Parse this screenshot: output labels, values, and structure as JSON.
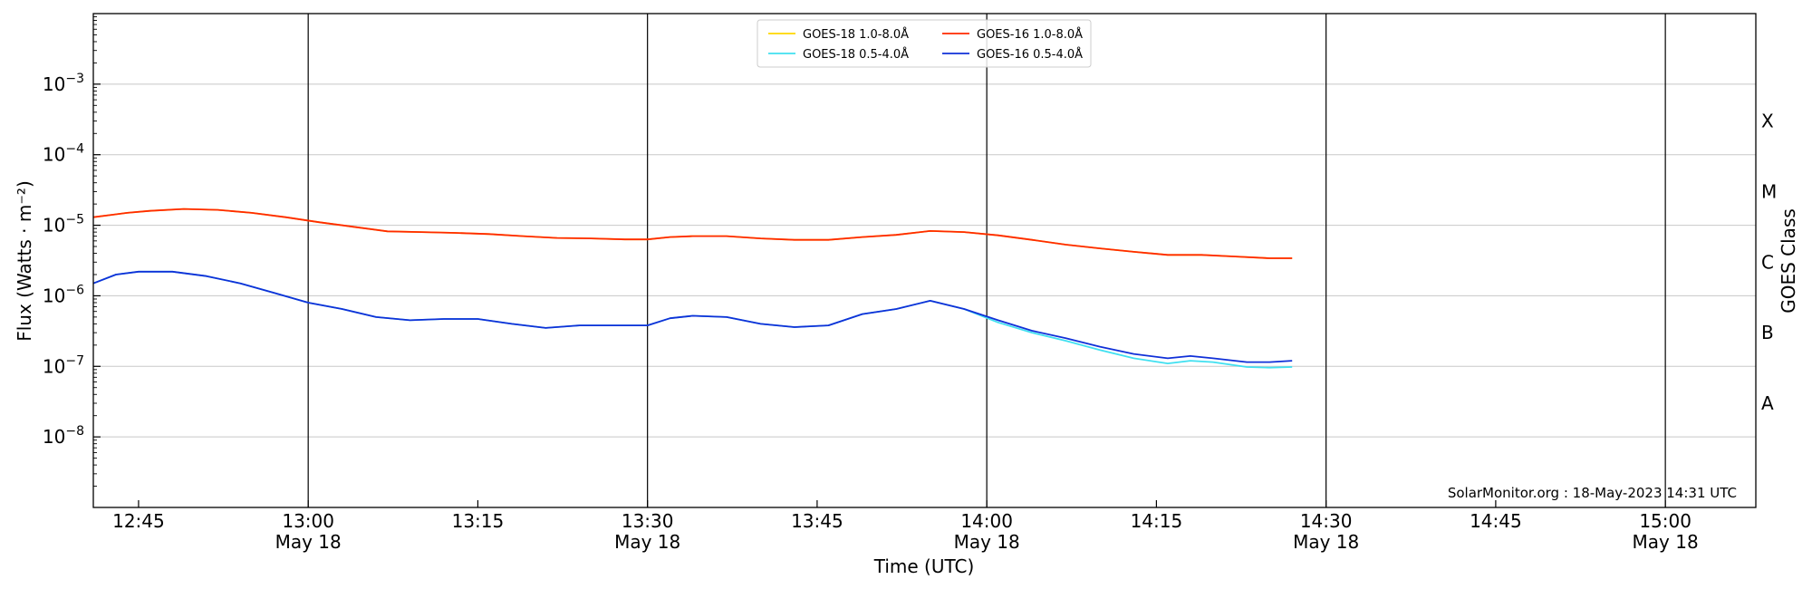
{
  "chart_data": {
    "type": "line",
    "xlabel": "Time (UTC)",
    "ylabel": "Flux (Watts · m⁻²)",
    "ylabel_right": "GOES Class",
    "credit": "SolarMonitor.org : 18-May-2023 14:31 UTC",
    "y_scale": "log",
    "ylim": [
      1e-09,
      0.01
    ],
    "xlim": [
      "2023-05-18 12:41",
      "2023-05-18 15:08"
    ],
    "grid": true,
    "legend_placement": "top-center",
    "x_ticks": [
      {
        "time": "12:45",
        "line1": "12:45",
        "line2": ""
      },
      {
        "time": "13:00",
        "line1": "13:00",
        "line2": "May 18"
      },
      {
        "time": "13:15",
        "line1": "13:15",
        "line2": ""
      },
      {
        "time": "13:30",
        "line1": "13:30",
        "line2": "May 18"
      },
      {
        "time": "13:45",
        "line1": "13:45",
        "line2": ""
      },
      {
        "time": "14:00",
        "line1": "14:00",
        "line2": "May 18"
      },
      {
        "time": "14:15",
        "line1": "14:15",
        "line2": ""
      },
      {
        "time": "14:30",
        "line1": "14:30",
        "line2": "May 18"
      },
      {
        "time": "14:45",
        "line1": "14:45",
        "line2": ""
      },
      {
        "time": "15:00",
        "line1": "15:00",
        "line2": "May 18"
      }
    ],
    "vertical_lines": [
      "13:00",
      "13:30",
      "14:00",
      "14:30",
      "15:00"
    ],
    "y_ticks": [
      {
        "value": 1e-08,
        "base": "10",
        "exp": "−8"
      },
      {
        "value": 1e-07,
        "base": "10",
        "exp": "−7"
      },
      {
        "value": 1e-06,
        "base": "10",
        "exp": "−6"
      },
      {
        "value": 1e-05,
        "base": "10",
        "exp": "−5"
      },
      {
        "value": 0.0001,
        "base": "10",
        "exp": "−4"
      },
      {
        "value": 0.001,
        "base": "10",
        "exp": "−3"
      }
    ],
    "goes_classes": [
      {
        "label": "A",
        "value": 3e-08
      },
      {
        "label": "B",
        "value": 3e-07
      },
      {
        "label": "C",
        "value": 3e-06
      },
      {
        "label": "M",
        "value": 3e-05
      },
      {
        "label": "X",
        "value": 0.0003
      }
    ],
    "series": [
      {
        "name": "GOES-18 1.0-8.0Å",
        "color": "#ffd700",
        "points": [
          [
            "12:41",
            1.3e-05
          ],
          [
            "12:44",
            1.5e-05
          ],
          [
            "12:46",
            1.6e-05
          ],
          [
            "12:49",
            1.7e-05
          ],
          [
            "12:52",
            1.65e-05
          ],
          [
            "12:55",
            1.5e-05
          ],
          [
            "12:58",
            1.3e-05
          ],
          [
            "13:01",
            1.1e-05
          ],
          [
            "13:04",
            9.5e-06
          ],
          [
            "13:07",
            8.2e-06
          ],
          [
            "13:10",
            8e-06
          ],
          [
            "13:13",
            7.8e-06
          ],
          [
            "13:16",
            7.5e-06
          ],
          [
            "13:19",
            7e-06
          ],
          [
            "13:22",
            6.6e-06
          ],
          [
            "13:25",
            6.5e-06
          ],
          [
            "13:28",
            6.3e-06
          ],
          [
            "13:30",
            6.3e-06
          ],
          [
            "13:32",
            6.8e-06
          ],
          [
            "13:34",
            7e-06
          ],
          [
            "13:37",
            7e-06
          ],
          [
            "13:40",
            6.5e-06
          ],
          [
            "13:43",
            6.2e-06
          ],
          [
            "13:46",
            6.2e-06
          ],
          [
            "13:49",
            6.8e-06
          ],
          [
            "13:52",
            7.3e-06
          ],
          [
            "13:55",
            8.3e-06
          ],
          [
            "13:58",
            8e-06
          ],
          [
            "14:01",
            7.2e-06
          ],
          [
            "14:04",
            6.2e-06
          ],
          [
            "14:07",
            5.3e-06
          ],
          [
            "14:10",
            4.7e-06
          ],
          [
            "14:13",
            4.2e-06
          ],
          [
            "14:16",
            3.8e-06
          ],
          [
            "14:19",
            3.8e-06
          ],
          [
            "14:22",
            3.6e-06
          ],
          [
            "14:25",
            3.4e-06
          ],
          [
            "14:27",
            3.4e-06
          ]
        ]
      },
      {
        "name": "GOES-18 0.5-4.0Å",
        "color": "#40e0f0",
        "points": [
          [
            "12:41",
            1.5e-06
          ],
          [
            "12:43",
            2e-06
          ],
          [
            "12:45",
            2.2e-06
          ],
          [
            "12:48",
            2.2e-06
          ],
          [
            "12:51",
            1.9e-06
          ],
          [
            "12:54",
            1.5e-06
          ],
          [
            "12:57",
            1.1e-06
          ],
          [
            "13:00",
            8e-07
          ],
          [
            "13:03",
            6.5e-07
          ],
          [
            "13:06",
            5e-07
          ],
          [
            "13:09",
            4.5e-07
          ],
          [
            "13:12",
            4.7e-07
          ],
          [
            "13:15",
            4.7e-07
          ],
          [
            "13:18",
            4e-07
          ],
          [
            "13:21",
            3.5e-07
          ],
          [
            "13:24",
            3.8e-07
          ],
          [
            "13:27",
            3.8e-07
          ],
          [
            "13:30",
            3.8e-07
          ],
          [
            "13:32",
            4.8e-07
          ],
          [
            "13:34",
            5.2e-07
          ],
          [
            "13:37",
            5e-07
          ],
          [
            "13:40",
            4e-07
          ],
          [
            "13:43",
            3.6e-07
          ],
          [
            "13:46",
            3.8e-07
          ],
          [
            "13:49",
            5.5e-07
          ],
          [
            "13:52",
            6.5e-07
          ],
          [
            "13:55",
            8.5e-07
          ],
          [
            "13:58",
            6.5e-07
          ],
          [
            "14:01",
            4.2e-07
          ],
          [
            "14:04",
            3e-07
          ],
          [
            "14:07",
            2.3e-07
          ],
          [
            "14:10",
            1.7e-07
          ],
          [
            "14:13",
            1.3e-07
          ],
          [
            "14:16",
            1.1e-07
          ],
          [
            "14:18",
            1.2e-07
          ],
          [
            "14:20",
            1.15e-07
          ],
          [
            "14:23",
            9.8e-08
          ],
          [
            "14:25",
            9.6e-08
          ],
          [
            "14:27",
            9.8e-08
          ]
        ]
      },
      {
        "name": "GOES-16 1.0-8.0Å",
        "color": "#ff2a00",
        "points": [
          [
            "12:41",
            1.3e-05
          ],
          [
            "12:44",
            1.5e-05
          ],
          [
            "12:46",
            1.6e-05
          ],
          [
            "12:49",
            1.7e-05
          ],
          [
            "12:52",
            1.65e-05
          ],
          [
            "12:55",
            1.5e-05
          ],
          [
            "12:58",
            1.3e-05
          ],
          [
            "13:01",
            1.1e-05
          ],
          [
            "13:04",
            9.5e-06
          ],
          [
            "13:07",
            8.2e-06
          ],
          [
            "13:10",
            8e-06
          ],
          [
            "13:13",
            7.8e-06
          ],
          [
            "13:16",
            7.5e-06
          ],
          [
            "13:19",
            7e-06
          ],
          [
            "13:22",
            6.6e-06
          ],
          [
            "13:25",
            6.5e-06
          ],
          [
            "13:28",
            6.3e-06
          ],
          [
            "13:30",
            6.3e-06
          ],
          [
            "13:32",
            6.8e-06
          ],
          [
            "13:34",
            7e-06
          ],
          [
            "13:37",
            7e-06
          ],
          [
            "13:40",
            6.5e-06
          ],
          [
            "13:43",
            6.2e-06
          ],
          [
            "13:46",
            6.2e-06
          ],
          [
            "13:49",
            6.8e-06
          ],
          [
            "13:52",
            7.3e-06
          ],
          [
            "13:55",
            8.3e-06
          ],
          [
            "13:58",
            8e-06
          ],
          [
            "14:01",
            7.2e-06
          ],
          [
            "14:04",
            6.2e-06
          ],
          [
            "14:07",
            5.3e-06
          ],
          [
            "14:10",
            4.7e-06
          ],
          [
            "14:13",
            4.2e-06
          ],
          [
            "14:16",
            3.8e-06
          ],
          [
            "14:19",
            3.8e-06
          ],
          [
            "14:22",
            3.6e-06
          ],
          [
            "14:25",
            3.4e-06
          ],
          [
            "14:27",
            3.4e-06
          ]
        ]
      },
      {
        "name": "GOES-16 0.5-4.0Å",
        "color": "#1030d8",
        "points": [
          [
            "12:41",
            1.5e-06
          ],
          [
            "12:43",
            2e-06
          ],
          [
            "12:45",
            2.2e-06
          ],
          [
            "12:48",
            2.2e-06
          ],
          [
            "12:51",
            1.9e-06
          ],
          [
            "12:54",
            1.5e-06
          ],
          [
            "12:57",
            1.1e-06
          ],
          [
            "13:00",
            8e-07
          ],
          [
            "13:03",
            6.5e-07
          ],
          [
            "13:06",
            5e-07
          ],
          [
            "13:09",
            4.5e-07
          ],
          [
            "13:12",
            4.7e-07
          ],
          [
            "13:15",
            4.7e-07
          ],
          [
            "13:18",
            4e-07
          ],
          [
            "13:21",
            3.5e-07
          ],
          [
            "13:24",
            3.8e-07
          ],
          [
            "13:27",
            3.8e-07
          ],
          [
            "13:30",
            3.8e-07
          ],
          [
            "13:32",
            4.8e-07
          ],
          [
            "13:34",
            5.2e-07
          ],
          [
            "13:37",
            5e-07
          ],
          [
            "13:40",
            4e-07
          ],
          [
            "13:43",
            3.6e-07
          ],
          [
            "13:46",
            3.8e-07
          ],
          [
            "13:49",
            5.5e-07
          ],
          [
            "13:52",
            6.5e-07
          ],
          [
            "13:55",
            8.5e-07
          ],
          [
            "13:58",
            6.5e-07
          ],
          [
            "14:01",
            4.5e-07
          ],
          [
            "14:04",
            3.2e-07
          ],
          [
            "14:07",
            2.5e-07
          ],
          [
            "14:10",
            1.9e-07
          ],
          [
            "14:13",
            1.5e-07
          ],
          [
            "14:16",
            1.3e-07
          ],
          [
            "14:18",
            1.4e-07
          ],
          [
            "14:20",
            1.3e-07
          ],
          [
            "14:23",
            1.15e-07
          ],
          [
            "14:25",
            1.15e-07
          ],
          [
            "14:27",
            1.2e-07
          ]
        ]
      }
    ]
  }
}
